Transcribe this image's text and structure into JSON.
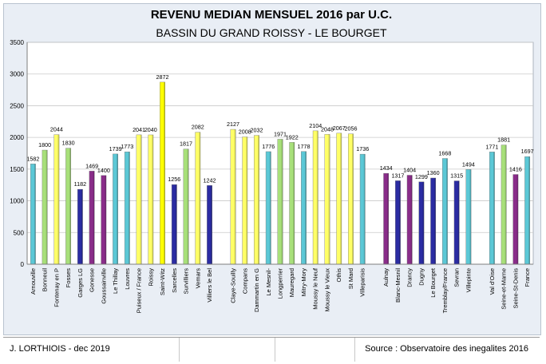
{
  "chart_data": {
    "type": "bar",
    "title": "REVENU MEDIAN MENSUEL 2016 par U.C.",
    "subtitle": "BASSIN DU GRAND ROISSY - LE BOURGET",
    "ylim": [
      0,
      3500
    ],
    "yticks": [
      0,
      500,
      1000,
      1500,
      2000,
      2500,
      3000,
      3500
    ],
    "grid": true,
    "categories": [
      "Arnouville",
      "Bonneuil",
      "Fontenay en P",
      "Fosses",
      "Garges LG",
      "Gonesse",
      "Goussainville",
      "Le Thillay",
      "Louvres",
      "Puiseux / France",
      "Roissy",
      "Saint-Witz",
      "Sarcelles",
      "Survilliers",
      "Vemars",
      "Villiers le Bel",
      "",
      "Claye-Souilly",
      "Compans",
      "Dammartin en G",
      "Le Mesnil-",
      "Longperrier",
      "Mauregard",
      "Mitry-Mory",
      "Moussy le Neuf",
      "Moussy le Vieux",
      "Othis",
      "St Mard",
      "Villeparisis",
      "",
      "Aulnay",
      "Blanc-Mesnil",
      "Drancy",
      "Dugny",
      "Le Bourget",
      "Tremblay/France",
      "Sevran",
      "Villepinte",
      "",
      "Val d'Oise",
      "Seine-et-Marne",
      "Seine-St-Denis",
      "France"
    ],
    "values": [
      1582,
      1800,
      2044,
      1830,
      1182,
      1469,
      1400,
      1739,
      1773,
      2041,
      2040,
      2872,
      1256,
      1817,
      2082,
      1242,
      null,
      2127,
      2008,
      2032,
      1776,
      1971,
      1922,
      1778,
      2104,
      2048,
      2067,
      2056,
      1736,
      null,
      1434,
      1317,
      1404,
      1299,
      1360,
      1668,
      1315,
      1494,
      null,
      1771,
      1881,
      1416,
      1697
    ],
    "colors": [
      "#5bc8d6",
      "#a8e07a",
      "#ffff66",
      "#a8e07a",
      "#2b2ca3",
      "#8a2d8a",
      "#8a2d8a",
      "#5bc8d6",
      "#5bc8d6",
      "#ffff66",
      "#ffff66",
      "#ffff00",
      "#2b2ca3",
      "#a8e07a",
      "#ffff66",
      "#2b2ca3",
      null,
      "#ffff66",
      "#ffff66",
      "#ffff66",
      "#5bc8d6",
      "#a8e07a",
      "#a8e07a",
      "#5bc8d6",
      "#ffff66",
      "#ffff66",
      "#ffff66",
      "#ffff66",
      "#5bc8d6",
      null,
      "#8a2d8a",
      "#2b2ca3",
      "#8a2d8a",
      "#2b2ca3",
      "#2b2ca3",
      "#5bc8d6",
      "#2b2ca3",
      "#5bc8d6",
      null,
      "#5bc8d6",
      "#a8e07a",
      "#8a2d8a",
      "#5bc8d6"
    ]
  },
  "footer": {
    "author": "J. LORTHIOIS - dec 2019",
    "source": "Source : Observatoire des inegalites 2016"
  }
}
